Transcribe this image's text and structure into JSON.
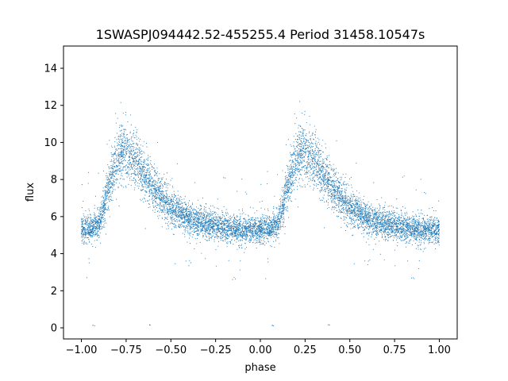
{
  "chart_data": {
    "type": "scatter",
    "title": "1SWASPJ094442.52-455255.4 Period 31458.10547s",
    "xlabel": "phase",
    "ylabel": "flux",
    "xlim": [
      -1.1,
      1.1
    ],
    "ylim": [
      -0.6,
      15.2
    ],
    "xticks": [
      -1.0,
      -0.75,
      -0.5,
      -0.25,
      0.0,
      0.25,
      0.5,
      0.75,
      1.0
    ],
    "xtick_labels": [
      "−1.00",
      "−0.75",
      "−0.50",
      "−0.25",
      "0.00",
      "0.25",
      "0.50",
      "0.75",
      "1.00"
    ],
    "yticks": [
      0,
      2,
      4,
      6,
      8,
      10,
      12,
      14
    ],
    "ytick_labels": [
      "0",
      "2",
      "4",
      "6",
      "8",
      "10",
      "12",
      "14"
    ],
    "grid": false,
    "marker_color": "#1f77b4",
    "phase_profile": {
      "phase": [
        0.0,
        0.05,
        0.1,
        0.15,
        0.2,
        0.25,
        0.3,
        0.35,
        0.4,
        0.45,
        0.5,
        0.55,
        0.6,
        0.65,
        0.7,
        0.75,
        0.8,
        0.85,
        0.9,
        0.95,
        1.0
      ],
      "flux": [
        5.3,
        5.4,
        5.6,
        7.5,
        9.2,
        9.5,
        9.0,
        8.3,
        7.6,
        7.0,
        6.5,
        6.2,
        5.9,
        5.7,
        5.6,
        5.5,
        5.4,
        5.3,
        5.3,
        5.3,
        5.3
      ]
    },
    "low_outliers": [
      {
        "x": -0.93,
        "y": 0.12
      },
      {
        "x": -0.62,
        "y": 0.15
      },
      {
        "x": 0.07,
        "y": 0.12
      },
      {
        "x": 0.38,
        "y": 0.15
      }
    ]
  }
}
